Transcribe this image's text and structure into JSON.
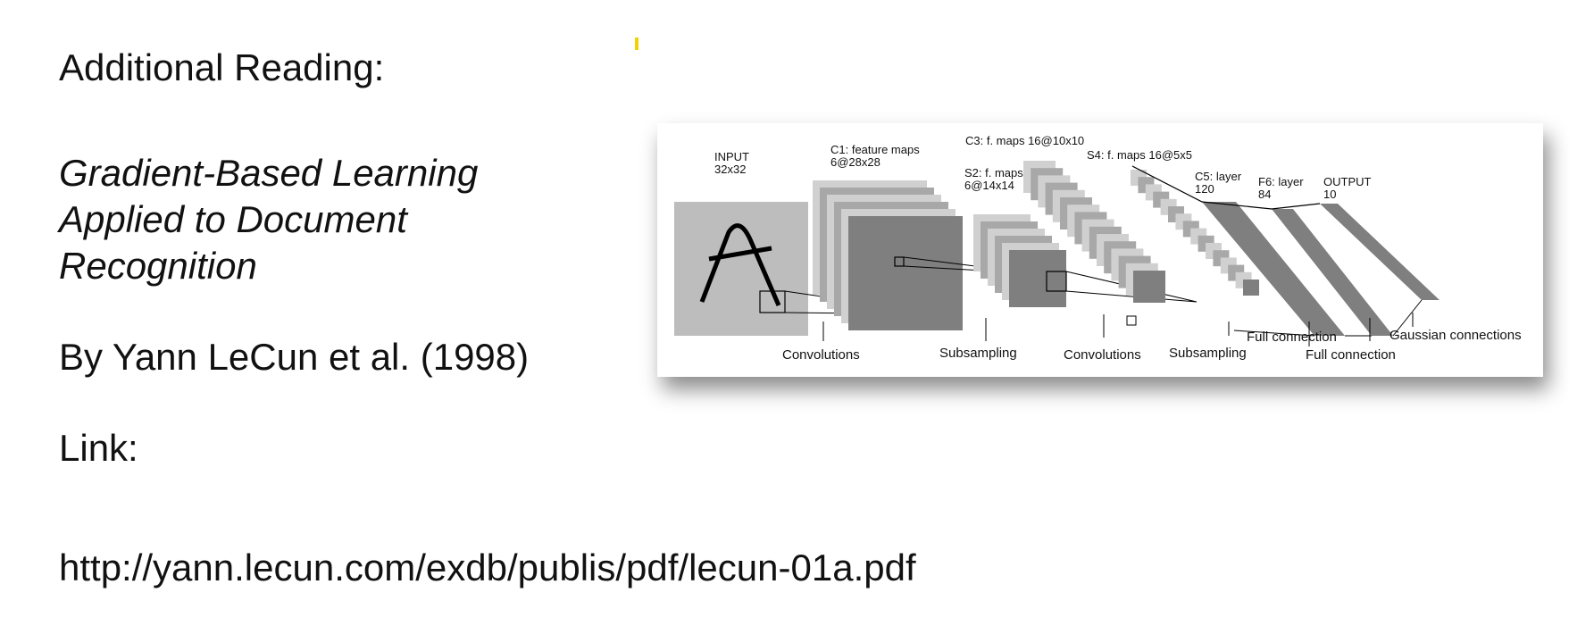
{
  "slide": {
    "heading": "Additional Reading:",
    "title_lines": [
      "Gradient-Based Learning",
      "Applied to Document",
      "Recognition"
    ],
    "author": "By Yann LeCun et al. (1998)",
    "link_label": "Link:",
    "url": "http://yann.lecun.com/exdb/publis/pdf/lecun-01a.pdf"
  },
  "figure": {
    "input_label": "INPUT",
    "input_size": "32x32",
    "c1_label": "C1: feature maps",
    "c1_size": "6@28x28",
    "s2_label": "S2: f. maps",
    "s2_size": "6@14x14",
    "c3_label": "C3: f. maps 16@10x10",
    "s4_label": "S4: f. maps 16@5x5",
    "c5_label": "C5: layer",
    "c5_size": "120",
    "f6_label": "F6: layer",
    "f6_size": "84",
    "output_label": "OUTPUT",
    "output_size": "10",
    "bottom_convolutions_1": "Convolutions",
    "bottom_subsampling_1": "Subsampling",
    "bottom_convolutions_2": "Convolutions",
    "bottom_subsampling_2": "Subsampling",
    "bottom_full_connection_1": "Full connection",
    "bottom_full_connection_2": "Full connection",
    "bottom_gaussian": "Gaussian connections"
  }
}
